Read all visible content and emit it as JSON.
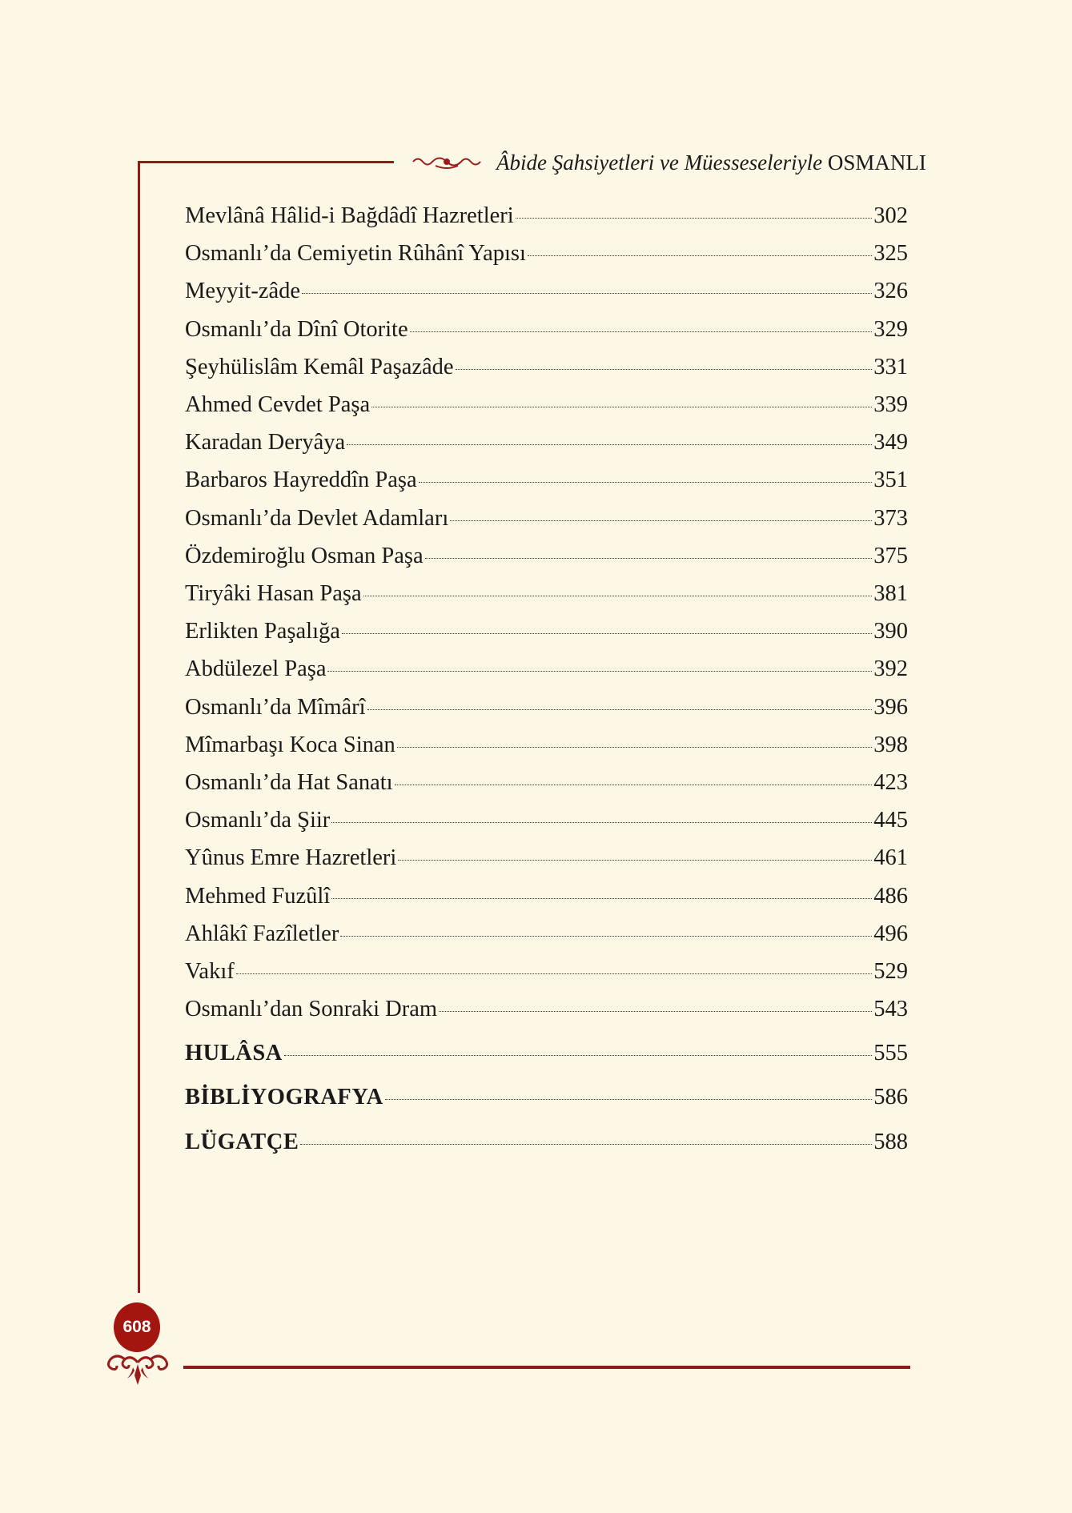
{
  "header": {
    "title_italic": "Âbide Şahsiyetleri ve Müesseseleriyle",
    "title_caps": "OSMANLI"
  },
  "toc": {
    "entries": [
      {
        "title": "Mevlânâ Hâlid-i Bağdâdî Hazretleri",
        "page": "302"
      },
      {
        "title": "Osmanlı’da Cemiyetin Rûhânî Yapısı",
        "page": "325"
      },
      {
        "title": "Meyyit-zâde",
        "page": "326"
      },
      {
        "title": "Osmanlı’da Dînî Otorite",
        "page": "329"
      },
      {
        "title": "Şeyhülislâm Kemâl Paşazâde",
        "page": "331"
      },
      {
        "title": "Ahmed Cevdet Paşa",
        "page": "339"
      },
      {
        "title": "Karadan Deryâya",
        "page": "349"
      },
      {
        "title": "Barbaros Hayreddîn Paşa",
        "page": "351"
      },
      {
        "title": "Osmanlı’da Devlet Adamları",
        "page": "373"
      },
      {
        "title": "Özdemiroğlu Osman Paşa",
        "page": "375"
      },
      {
        "title": "Tiryâki Hasan Paşa",
        "page": "381"
      },
      {
        "title": "Erlikten Paşalığa",
        "page": "390"
      },
      {
        "title": "Abdülezel Paşa",
        "page": "392"
      },
      {
        "title": "Osmanlı’da Mîmârî",
        "page": "396"
      },
      {
        "title": "Mîmarbaşı Koca Sinan",
        "page": "398"
      },
      {
        "title": "Osmanlı’da Hat Sanatı",
        "page": "423"
      },
      {
        "title": "Osmanlı’da Şiir",
        "page": "445"
      },
      {
        "title": "Yûnus Emre Hazretleri",
        "page": "461"
      },
      {
        "title": "Mehmed Fuzûlî",
        "page": "486"
      },
      {
        "title": "Ahlâkî Fazîletler",
        "page": "496"
      },
      {
        "title": "Vakıf",
        "page": "529"
      },
      {
        "title": "Osmanlı’dan Sonraki Dram",
        "page": "543"
      }
    ],
    "sections": [
      {
        "title": "HULÂSA",
        "page": "555"
      },
      {
        "title": "BİBLİYOGRAFYA",
        "page": "586"
      },
      {
        "title": "LÜGATÇE",
        "page": "588"
      }
    ]
  },
  "footer": {
    "page_number": "608"
  },
  "colors": {
    "accent": "#8e1a1a",
    "badge": "#a3150f",
    "background": "#fdf7e6"
  },
  "icons": {
    "header_ornament": "floral-ornament-icon",
    "footer_ornament": "flourish-ornament-icon"
  }
}
